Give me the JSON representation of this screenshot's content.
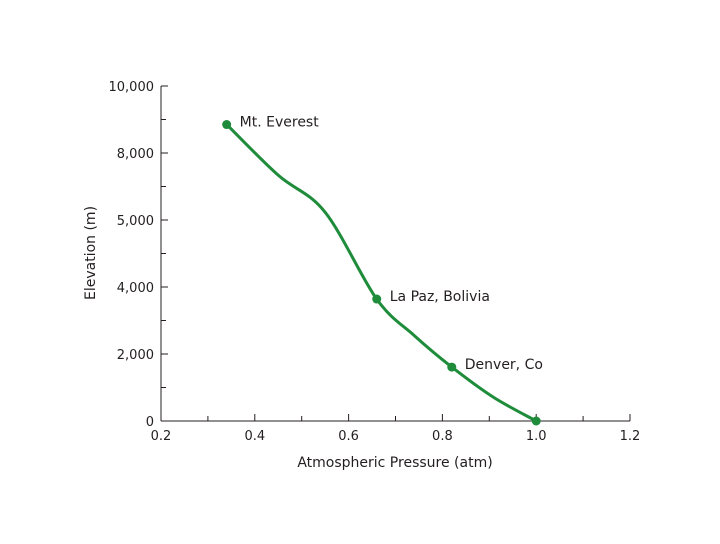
{
  "chart_data": {
    "type": "line",
    "title": "",
    "xlabel": "Atmospheric Pressure (atm)",
    "ylabel": "Elevation (m)",
    "xlim": [
      0.2,
      1.2
    ],
    "ylim": [
      0,
      10000
    ],
    "x_ticks": [
      0.2,
      0.4,
      0.6,
      0.8,
      1.0,
      1.2
    ],
    "x_tick_labels": [
      "0.2",
      "0.4",
      "0.6",
      "0.8",
      "1.0",
      "1.2"
    ],
    "y_ticks": [
      0,
      2000,
      4000,
      5000,
      8000,
      10000
    ],
    "y_tick_labels": [
      "0",
      "2,000",
      "4,000",
      "5,000",
      "8,000",
      "10,000"
    ],
    "grid": false,
    "series": [
      {
        "color": "#1e8c3a",
        "curve": [
          {
            "x": 0.34,
            "y": 8850
          },
          {
            "x": 0.45,
            "y": 7000
          },
          {
            "x": 0.55,
            "y": 5350
          },
          {
            "x": 0.66,
            "y": 3640
          },
          {
            "x": 0.74,
            "y": 2550
          },
          {
            "x": 0.82,
            "y": 1610
          },
          {
            "x": 0.91,
            "y": 700
          },
          {
            "x": 1.0,
            "y": 0
          }
        ],
        "points": [
          {
            "label": "Mt. Everest",
            "x": 0.34,
            "y": 8850
          },
          {
            "label": "La Paz, Bolivia",
            "x": 0.66,
            "y": 3640
          },
          {
            "label": "Denver, Co",
            "x": 0.82,
            "y": 1610
          },
          {
            "label": "",
            "x": 1.0,
            "y": 0
          }
        ]
      }
    ]
  }
}
